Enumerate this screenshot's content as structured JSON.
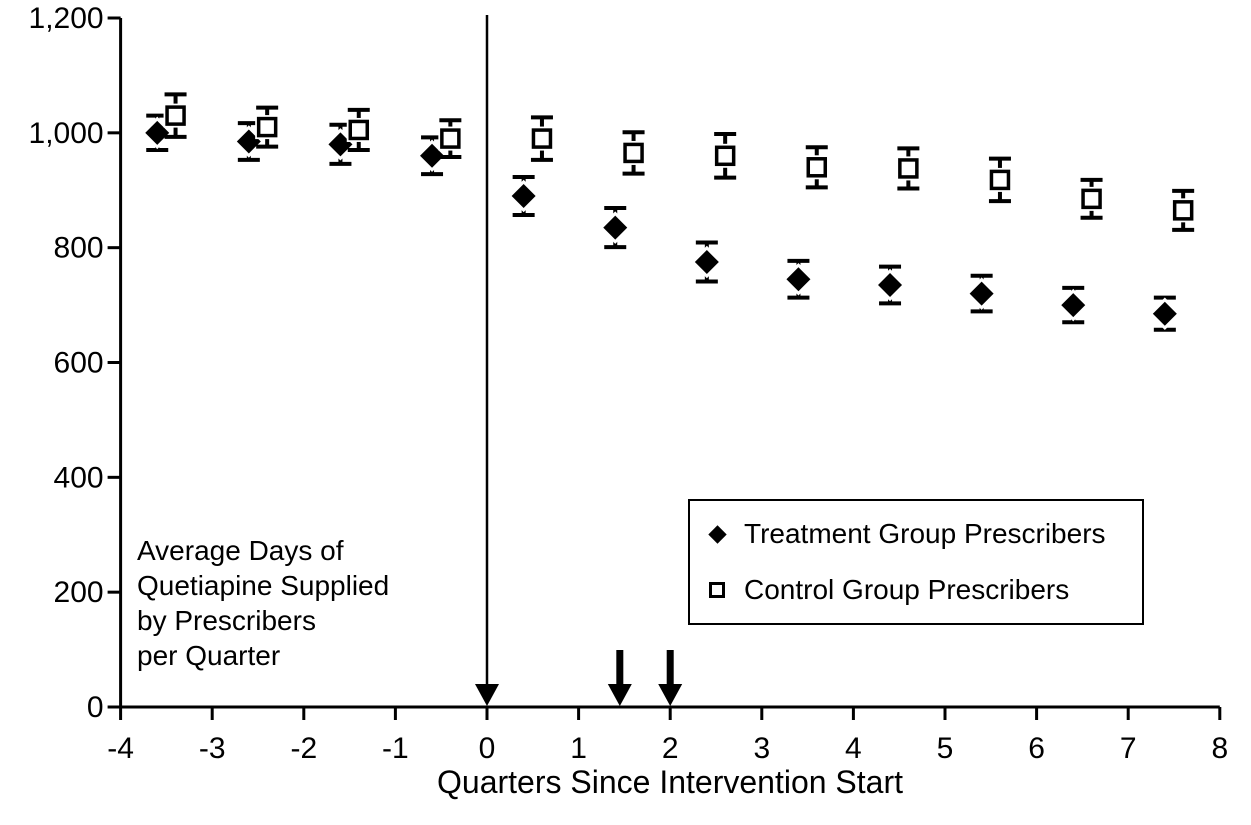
{
  "chart_data": {
    "type": "scatter",
    "title": "",
    "xlabel": "Quarters Since Intervention Start",
    "annotation_lines": [
      "Average Days of",
      "Quetiapine Supplied",
      "by Prescribers",
      "per Quarter"
    ],
    "xlim": [
      -4,
      8
    ],
    "ylim": [
      0,
      1200
    ],
    "grid": false,
    "x_ticks": [
      {
        "value": -4,
        "label": "-4"
      },
      {
        "value": -3,
        "label": "-3"
      },
      {
        "value": -2,
        "label": "-2"
      },
      {
        "value": -1,
        "label": "-1"
      },
      {
        "value": 0,
        "label": "0"
      },
      {
        "value": 1,
        "label": "1"
      },
      {
        "value": 2,
        "label": "2"
      },
      {
        "value": 3,
        "label": "3"
      },
      {
        "value": 4,
        "label": "4"
      },
      {
        "value": 5,
        "label": "5"
      },
      {
        "value": 6,
        "label": "6"
      },
      {
        "value": 7,
        "label": "7"
      },
      {
        "value": 8,
        "label": "8"
      }
    ],
    "y_ticks": [
      {
        "value": 0,
        "label": "0"
      },
      {
        "value": 200,
        "label": "200"
      },
      {
        "value": 400,
        "label": "400"
      },
      {
        "value": 600,
        "label": "600"
      },
      {
        "value": 800,
        "label": "800"
      },
      {
        "value": 1000,
        "label": "1,000"
      },
      {
        "value": 1200,
        "label": "1,200"
      }
    ],
    "series": [
      {
        "name": "Treatment Group Prescribers",
        "marker": "filled-diamond",
        "points": [
          {
            "x": -3.6,
            "y": 1000,
            "err": 30
          },
          {
            "x": -2.6,
            "y": 985,
            "err": 32
          },
          {
            "x": -1.6,
            "y": 980,
            "err": 34
          },
          {
            "x": -0.6,
            "y": 960,
            "err": 32
          },
          {
            "x": 0.4,
            "y": 890,
            "err": 33
          },
          {
            "x": 1.4,
            "y": 835,
            "err": 34
          },
          {
            "x": 2.4,
            "y": 775,
            "err": 34
          },
          {
            "x": 3.4,
            "y": 745,
            "err": 32
          },
          {
            "x": 4.4,
            "y": 735,
            "err": 32
          },
          {
            "x": 5.4,
            "y": 720,
            "err": 31
          },
          {
            "x": 6.4,
            "y": 700,
            "err": 30
          },
          {
            "x": 7.4,
            "y": 685,
            "err": 28
          }
        ]
      },
      {
        "name": "Control Group Prescribers",
        "marker": "open-square",
        "points": [
          {
            "x": -3.4,
            "y": 1030,
            "err": 37
          },
          {
            "x": -2.4,
            "y": 1010,
            "err": 34
          },
          {
            "x": -1.4,
            "y": 1005,
            "err": 35
          },
          {
            "x": -0.4,
            "y": 990,
            "err": 32
          },
          {
            "x": 0.6,
            "y": 990,
            "err": 37
          },
          {
            "x": 1.6,
            "y": 965,
            "err": 36
          },
          {
            "x": 2.6,
            "y": 960,
            "err": 38
          },
          {
            "x": 3.6,
            "y": 940,
            "err": 35
          },
          {
            "x": 4.6,
            "y": 938,
            "err": 35
          },
          {
            "x": 5.6,
            "y": 918,
            "err": 37
          },
          {
            "x": 6.6,
            "y": 885,
            "err": 33
          },
          {
            "x": 7.6,
            "y": 865,
            "err": 34
          }
        ]
      }
    ],
    "annotations": {
      "intervention_line_x": 0,
      "arrow_markers_x": [
        1.45,
        2.0
      ]
    },
    "legend": {
      "position": "inside-right"
    },
    "colors": {
      "foreground": "#000000",
      "background": "#ffffff"
    }
  }
}
